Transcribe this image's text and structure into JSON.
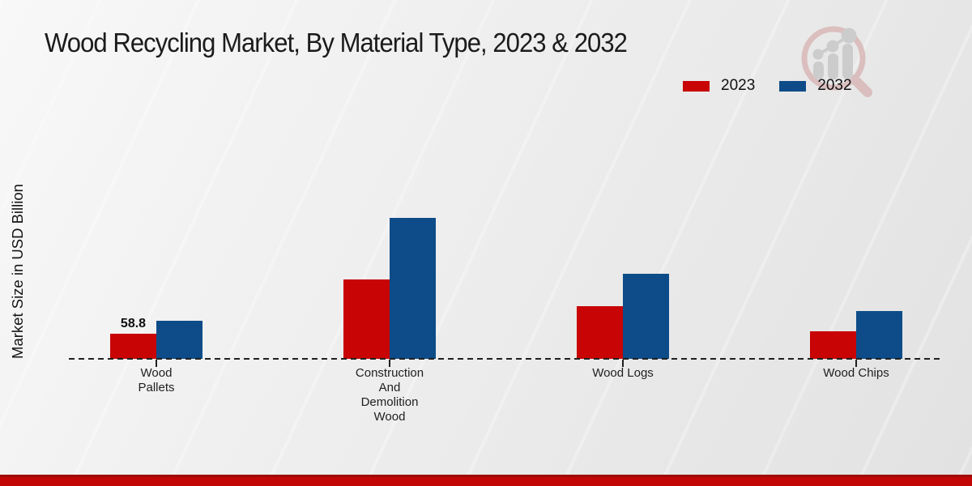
{
  "header": {
    "title": "Wood Recycling Market, By Material Type, 2023 & 2032"
  },
  "y_axis": {
    "label": "Market Size in USD Billion"
  },
  "legend": {
    "items": [
      {
        "label": "2023",
        "color": "#c80404"
      },
      {
        "label": "2032",
        "color": "#0d4c88"
      }
    ]
  },
  "watermark": {
    "icon": "magnifier-bar-chart-logo"
  },
  "chart_data": {
    "type": "bar",
    "title": "Wood Recycling Market, By Material Type, 2023 & 2032",
    "xlabel": "",
    "ylabel": "Market Size in USD Billion",
    "categories": [
      "Wood Pallets",
      "Construction And Demolition Wood",
      "Wood Logs",
      "Wood Chips"
    ],
    "category_label_lines": [
      [
        "Wood",
        "Pallets"
      ],
      [
        "Construction",
        "And",
        "Demolition",
        "Wood"
      ],
      [
        "Wood Logs"
      ],
      [
        "Wood Chips"
      ]
    ],
    "series": [
      {
        "name": "2023",
        "color": "#c80404",
        "values": [
          58.8,
          185.9,
          123.3,
          64.5
        ],
        "data_labels": [
          "58.8",
          "",
          "",
          ""
        ]
      },
      {
        "name": "2032",
        "color": "#0d4c88",
        "values": [
          89.1,
          330.0,
          199.2,
          111.9
        ],
        "data_labels": [
          "",
          "",
          "",
          ""
        ]
      }
    ],
    "ylim": [
      0,
      350
    ],
    "y_axis_visible": false,
    "gridlines": false,
    "baseline_style": "dashed",
    "legend_position": "top-right"
  },
  "footer": {
    "band_color": "#c20606",
    "band_edge_color": "#9e0a0a"
  }
}
